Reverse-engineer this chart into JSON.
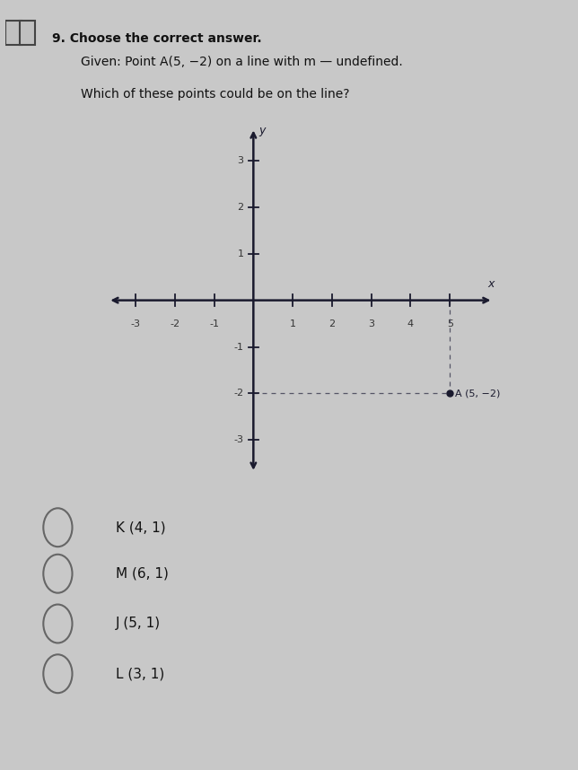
{
  "background_color": "#c8c8c8",
  "title_text": "9. Choose the correct answer.",
  "title_fontsize": 10,
  "given_text": "Given: Point A(5, −2) on a line with m — undefined.",
  "question_text": "Which of these points could be on the line?",
  "point_A": [
    5,
    -2
  ],
  "point_A_label": "A (5, −2)",
  "dashed_line_color": "#555566",
  "dot_color": "#1a1a2e",
  "axis_color": "#1a1a2e",
  "tick_color": "#333333",
  "xmin": -3.8,
  "xmax": 6.2,
  "ymin": -3.8,
  "ymax": 3.8,
  "x_ticks": [
    -3,
    -2,
    -1,
    1,
    2,
    3,
    4,
    5
  ],
  "y_ticks": [
    -3,
    -2,
    -1,
    1,
    2,
    3
  ],
  "x_label": "x",
  "y_label": "y",
  "choices": [
    "K (4, 1)",
    "M (6, 1)",
    "J (5, 1)",
    "L (3, 1)"
  ],
  "choice_fontsize": 11,
  "fig_width": 6.44,
  "fig_height": 8.58,
  "dpi": 100
}
